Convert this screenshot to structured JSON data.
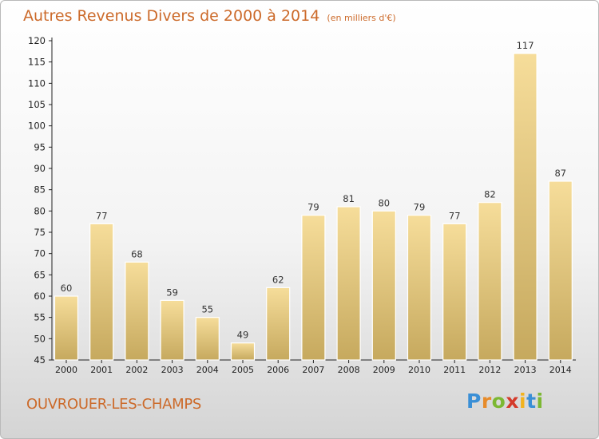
{
  "header": {
    "title": "Autres Revenus Divers de 2000 à 2014",
    "subtitle": "(en milliers d'€)"
  },
  "footer": {
    "city": "OUVROUER-LES-CHAMPS",
    "logo_letters": [
      "P",
      "r",
      "o",
      "x",
      "i",
      "t",
      "i"
    ],
    "logo_colors": [
      "#3a8fd6",
      "#e78b2a",
      "#7cb832",
      "#d43b2b",
      "#f2b31f",
      "#3a8fd6",
      "#7cb832"
    ]
  },
  "colors": {
    "title": "#cc6a2a",
    "bar_light": "#f6dd9a",
    "bar_dark": "#c6a95e"
  },
  "chart_data": {
    "type": "bar",
    "categories": [
      "2000",
      "2001",
      "2002",
      "2003",
      "2004",
      "2005",
      "2006",
      "2007",
      "2008",
      "2009",
      "2010",
      "2011",
      "2012",
      "2013",
      "2014"
    ],
    "values": [
      60,
      77,
      68,
      59,
      55,
      49,
      62,
      79,
      81,
      80,
      79,
      77,
      82,
      117,
      87
    ],
    "ylim": [
      45,
      120
    ],
    "yticks": [
      45,
      50,
      55,
      60,
      65,
      70,
      75,
      80,
      85,
      90,
      95,
      100,
      105,
      110,
      115,
      120
    ],
    "grid": false,
    "data_labels": true
  }
}
